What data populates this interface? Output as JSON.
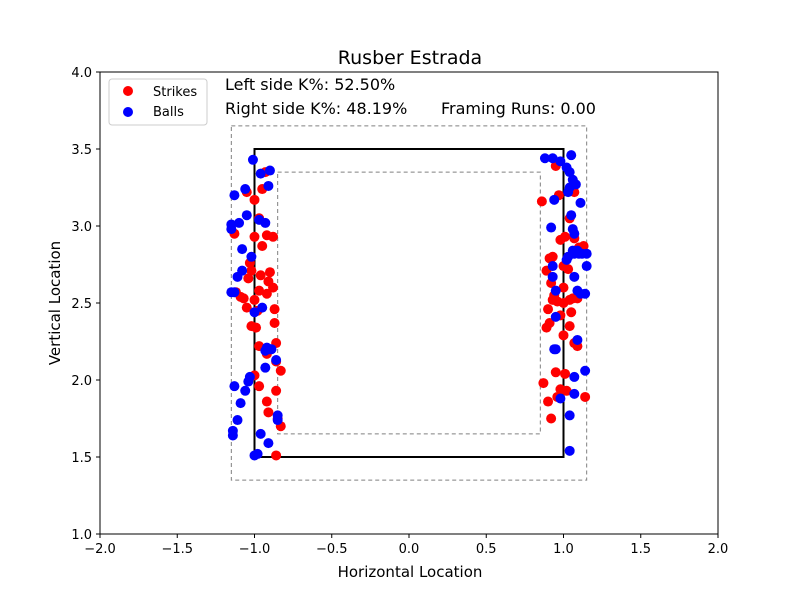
{
  "chart_data": {
    "type": "scatter",
    "title": "Rusber Estrada",
    "xlabel": "Horizontal Location",
    "ylabel": "Vertical Location",
    "xlim": [
      -2.0,
      2.0
    ],
    "ylim": [
      1.0,
      4.0
    ],
    "xticks": [
      "−2.0",
      "−1.5",
      "−1.0",
      "−0.5",
      "0.0",
      "0.5",
      "1.0",
      "1.5",
      "2.0"
    ],
    "xtick_values": [
      -2.0,
      -1.5,
      -1.0,
      -0.5,
      0.0,
      0.5,
      1.0,
      1.5,
      2.0
    ],
    "yticks": [
      "1.0",
      "1.5",
      "2.0",
      "2.5",
      "3.0",
      "3.5",
      "4.0"
    ],
    "ytick_values": [
      1.0,
      1.5,
      2.0,
      2.5,
      3.0,
      3.5,
      4.0
    ],
    "grid": false,
    "legend_position": "top-left",
    "annotations": {
      "left_k": "Left side K%: 52.50%",
      "right_k": "Right side K%: 48.19%",
      "framing": "Framing Runs: 0.00"
    },
    "zones": {
      "strike_zone": {
        "x": [
          -1.0,
          1.0
        ],
        "y": [
          1.5,
          3.5
        ],
        "color": "#000000"
      },
      "outer_zone": {
        "x": [
          -1.15,
          1.15
        ],
        "y": [
          1.35,
          3.65
        ],
        "color": "#808080"
      },
      "inner_zone": {
        "x": [
          -0.85,
          0.85
        ],
        "y": [
          1.65,
          3.35
        ],
        "color": "#808080"
      }
    },
    "series": [
      {
        "name": "Strikes",
        "color": "#ff0000",
        "points": [
          [
            -1.05,
            3.22
          ],
          [
            -0.95,
            3.24
          ],
          [
            -1.0,
            3.17
          ],
          [
            -0.93,
            3.35
          ],
          [
            -0.97,
            3.05
          ],
          [
            -1.13,
            2.95
          ],
          [
            -1.0,
            2.93
          ],
          [
            -0.95,
            2.87
          ],
          [
            -0.92,
            2.94
          ],
          [
            -0.88,
            2.93
          ],
          [
            -1.03,
            2.76
          ],
          [
            -1.02,
            2.71
          ],
          [
            -0.96,
            2.68
          ],
          [
            -0.91,
            2.64
          ],
          [
            -0.88,
            2.6
          ],
          [
            -0.92,
            2.56
          ],
          [
            -0.97,
            2.58
          ],
          [
            -1.0,
            2.52
          ],
          [
            -1.09,
            2.54
          ],
          [
            -1.07,
            2.53
          ],
          [
            -1.12,
            2.57
          ],
          [
            -1.05,
            2.47
          ],
          [
            -0.98,
            2.45
          ],
          [
            -0.87,
            2.46
          ],
          [
            -1.02,
            2.35
          ],
          [
            -0.99,
            2.34
          ],
          [
            -0.87,
            2.37
          ],
          [
            -1.04,
            2.66
          ],
          [
            -0.97,
            2.22
          ],
          [
            -0.86,
            2.24
          ],
          [
            -0.92,
            2.17
          ],
          [
            -0.86,
            2.12
          ],
          [
            -0.83,
            2.06
          ],
          [
            -1.0,
            2.03
          ],
          [
            -0.97,
            1.96
          ],
          [
            -0.86,
            1.93
          ],
          [
            -0.92,
            1.86
          ],
          [
            -0.91,
            1.79
          ],
          [
            -0.85,
            1.75
          ],
          [
            -0.83,
            1.7
          ],
          [
            -0.86,
            1.51
          ],
          [
            -0.9,
            2.7
          ],
          [
            0.95,
            3.39
          ],
          [
            0.97,
            3.2
          ],
          [
            0.86,
            3.16
          ],
          [
            1.07,
            3.22
          ],
          [
            1.04,
            3.05
          ],
          [
            1.07,
            2.92
          ],
          [
            0.98,
            2.91
          ],
          [
            1.01,
            2.93
          ],
          [
            1.1,
            2.86
          ],
          [
            1.13,
            2.87
          ],
          [
            0.93,
            2.8
          ],
          [
            0.91,
            2.79
          ],
          [
            0.89,
            2.71
          ],
          [
            1.0,
            2.74
          ],
          [
            1.03,
            2.72
          ],
          [
            0.92,
            2.63
          ],
          [
            0.94,
            2.55
          ],
          [
            0.93,
            2.52
          ],
          [
            0.96,
            2.51
          ],
          [
            1.0,
            2.5
          ],
          [
            1.04,
            2.52
          ],
          [
            1.06,
            2.53
          ],
          [
            1.09,
            2.53
          ],
          [
            1.05,
            2.44
          ],
          [
            0.98,
            2.42
          ],
          [
            0.91,
            2.37
          ],
          [
            0.89,
            2.34
          ],
          [
            1.04,
            2.35
          ],
          [
            1.0,
            2.29
          ],
          [
            1.07,
            2.24
          ],
          [
            1.09,
            2.22
          ],
          [
            0.95,
            2.05
          ],
          [
            1.01,
            2.04
          ],
          [
            0.87,
            1.98
          ],
          [
            0.98,
            1.94
          ],
          [
            1.02,
            1.93
          ],
          [
            0.9,
            1.86
          ],
          [
            0.96,
            1.89
          ],
          [
            1.14,
            1.89
          ],
          [
            0.92,
            1.75
          ],
          [
            1.0,
            2.6
          ],
          [
            0.9,
            2.46
          ]
        ]
      },
      {
        "name": "Balls",
        "color": "#0000ff",
        "points": [
          [
            -1.01,
            3.43
          ],
          [
            -0.9,
            3.36
          ],
          [
            -0.96,
            3.34
          ],
          [
            -0.91,
            3.26
          ],
          [
            -1.06,
            3.24
          ],
          [
            -1.13,
            3.2
          ],
          [
            -1.05,
            3.07
          ],
          [
            -0.97,
            3.04
          ],
          [
            -0.93,
            3.02
          ],
          [
            -1.1,
            3.02
          ],
          [
            -1.15,
            2.98
          ],
          [
            -1.15,
            3.01
          ],
          [
            -1.08,
            2.85
          ],
          [
            -1.02,
            2.8
          ],
          [
            -1.08,
            2.71
          ],
          [
            -1.11,
            2.67
          ],
          [
            -1.15,
            2.57
          ],
          [
            -1.13,
            2.57
          ],
          [
            -1.0,
            2.44
          ],
          [
            -0.95,
            2.47
          ],
          [
            -0.93,
            2.19
          ],
          [
            -0.9,
            2.2
          ],
          [
            -0.89,
            2.2
          ],
          [
            -0.92,
            2.21
          ],
          [
            -0.86,
            2.13
          ],
          [
            -0.93,
            2.08
          ],
          [
            -1.03,
            2.02
          ],
          [
            -1.04,
            1.99
          ],
          [
            -1.06,
            1.93
          ],
          [
            -1.13,
            1.96
          ],
          [
            -1.09,
            1.85
          ],
          [
            -0.85,
            1.77
          ],
          [
            -0.85,
            1.74
          ],
          [
            -1.11,
            1.74
          ],
          [
            -0.96,
            1.65
          ],
          [
            -1.14,
            1.67
          ],
          [
            -1.14,
            1.64
          ],
          [
            -0.91,
            1.59
          ],
          [
            -1.0,
            1.51
          ],
          [
            -0.98,
            1.52
          ],
          [
            0.88,
            3.44
          ],
          [
            0.93,
            3.44
          ],
          [
            0.98,
            3.42
          ],
          [
            1.02,
            3.38
          ],
          [
            1.05,
            3.46
          ],
          [
            1.04,
            3.35
          ],
          [
            1.06,
            3.3
          ],
          [
            1.08,
            3.27
          ],
          [
            1.04,
            3.25
          ],
          [
            1.03,
            3.22
          ],
          [
            0.94,
            3.17
          ],
          [
            1.11,
            3.15
          ],
          [
            1.05,
            3.07
          ],
          [
            1.06,
            2.98
          ],
          [
            1.07,
            2.95
          ],
          [
            0.92,
            2.99
          ],
          [
            1.06,
            2.84
          ],
          [
            1.07,
            2.82
          ],
          [
            1.09,
            2.84
          ],
          [
            1.12,
            2.82
          ],
          [
            1.03,
            2.8
          ],
          [
            1.1,
            2.82
          ],
          [
            1.15,
            2.82
          ],
          [
            1.02,
            2.78
          ],
          [
            0.93,
            2.74
          ],
          [
            1.15,
            2.74
          ],
          [
            1.07,
            2.67
          ],
          [
            0.93,
            2.67
          ],
          [
            0.95,
            2.58
          ],
          [
            1.09,
            2.58
          ],
          [
            1.11,
            2.56
          ],
          [
            1.14,
            2.56
          ],
          [
            0.95,
            2.41
          ],
          [
            1.09,
            2.26
          ],
          [
            0.94,
            2.2
          ],
          [
            0.95,
            2.2
          ],
          [
            1.14,
            2.06
          ],
          [
            1.07,
            2.02
          ],
          [
            1.07,
            1.91
          ],
          [
            0.98,
            1.88
          ],
          [
            1.04,
            1.77
          ],
          [
            1.04,
            1.54
          ]
        ]
      }
    ]
  }
}
